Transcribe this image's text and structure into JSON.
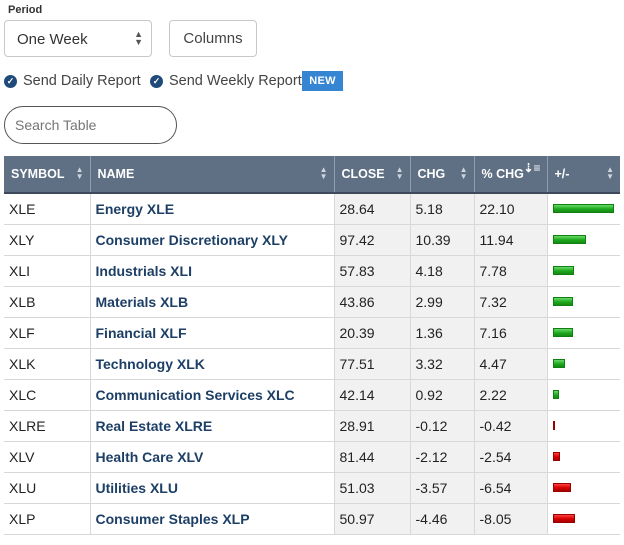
{
  "period": {
    "label": "Period",
    "selected": "One Week"
  },
  "columns_button": "Columns",
  "reports": [
    {
      "label": "Send Daily Report",
      "checked": true
    },
    {
      "label": "Send Weekly Report",
      "checked": true,
      "badge": "NEW"
    }
  ],
  "search": {
    "placeholder": "Search Table"
  },
  "table": {
    "headers": [
      "SYMBOL",
      "NAME",
      "CLOSE",
      "CHG",
      "% CHG",
      "+/-"
    ],
    "rows": [
      {
        "symbol": "XLE",
        "name": "Energy XLE",
        "close": "28.64",
        "chg": "5.18",
        "pchg": "22.10",
        "pct": 22.1
      },
      {
        "symbol": "XLY",
        "name": "Consumer Discretionary XLY",
        "close": "97.42",
        "chg": "10.39",
        "pchg": "11.94",
        "pct": 11.94
      },
      {
        "symbol": "XLI",
        "name": "Industrials XLI",
        "close": "57.83",
        "chg": "4.18",
        "pchg": "7.78",
        "pct": 7.78
      },
      {
        "symbol": "XLB",
        "name": "Materials XLB",
        "close": "43.86",
        "chg": "2.99",
        "pchg": "7.32",
        "pct": 7.32
      },
      {
        "symbol": "XLF",
        "name": "Financial XLF",
        "close": "20.39",
        "chg": "1.36",
        "pchg": "7.16",
        "pct": 7.16
      },
      {
        "symbol": "XLK",
        "name": "Technology XLK",
        "close": "77.51",
        "chg": "3.32",
        "pchg": "4.47",
        "pct": 4.47
      },
      {
        "symbol": "XLC",
        "name": "Communication Services XLC",
        "close": "42.14",
        "chg": "0.92",
        "pchg": "2.22",
        "pct": 2.22
      },
      {
        "symbol": "XLRE",
        "name": "Real Estate XLRE",
        "close": "28.91",
        "chg": "-0.12",
        "pchg": "-0.42",
        "pct": -0.42
      },
      {
        "symbol": "XLV",
        "name": "Health Care XLV",
        "close": "81.44",
        "chg": "-2.12",
        "pchg": "-2.54",
        "pct": -2.54
      },
      {
        "symbol": "XLU",
        "name": "Utilities XLU",
        "close": "51.03",
        "chg": "-3.57",
        "pchg": "-6.54",
        "pct": -6.54
      },
      {
        "symbol": "XLP",
        "name": "Consumer Staples XLP",
        "close": "50.97",
        "chg": "-4.46",
        "pchg": "-8.05",
        "pct": -8.05
      }
    ]
  },
  "colors": {
    "header_bg": "#5f6f84",
    "name_link": "#1d3f66",
    "positive_bar": "#1ea91e",
    "negative_bar": "#d40000",
    "badge": "#3585d3"
  },
  "icons": {
    "check": "check-circle-icon",
    "select": "updown-arrows-icon",
    "sort": "sort-arrows-icon",
    "sort_active": "sort-descending-icon"
  }
}
